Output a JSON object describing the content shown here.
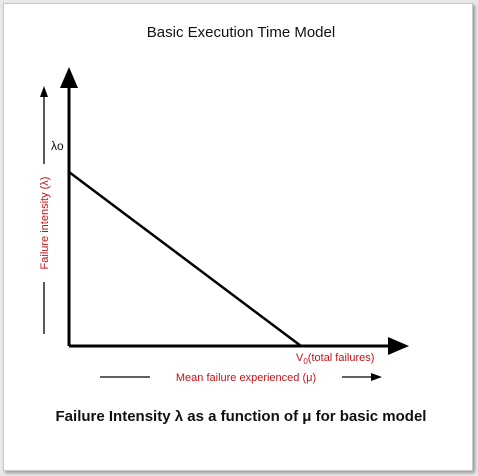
{
  "figure": {
    "title": "Basic Execution Time Model",
    "y_axis_label": "Failure intensity (λ)",
    "x_axis_label": "Mean failure experienced (μ)",
    "intercept_y_label": "λo",
    "intercept_x_label": {
      "main": "V",
      "subscript": "0",
      "suffix": "(total failures)"
    },
    "caption": {
      "part1": "Failure Intensity ",
      "lambda": "λ",
      "part2": " as a function of ",
      "mu": "μ",
      "part3": " for basic model"
    },
    "colors": {
      "axis": "#000000",
      "label_accent": "#c0141b",
      "background": "#ffffff",
      "page_background": "#e9e9e9"
    }
  }
}
